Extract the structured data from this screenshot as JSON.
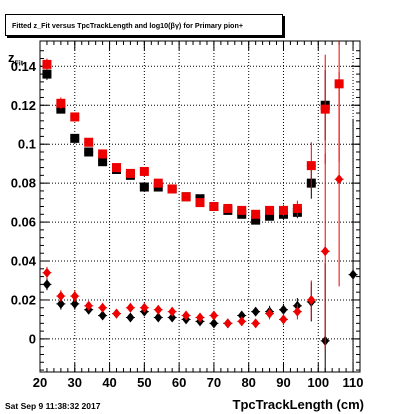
{
  "title_box": {
    "text": "Fitted  z_Fit versus TpcTrackLength and log10(βγ) for Primary pion+"
  },
  "footer": {
    "timestamp": "Sat Sep  9 11:38:32 2017"
  },
  "colors": {
    "series_black": "#000000",
    "series_red": "#ee0000"
  },
  "chart_data": {
    "type": "scatter",
    "title": "Fitted  z_Fit versus TpcTrackLength and log10(βγ) for Primary pion+",
    "xlabel": "TpcTrackLength (cm)",
    "ylabel": "z_Fit",
    "xlim": [
      20,
      112
    ],
    "ylim": [
      -0.017,
      0.153
    ],
    "x_ticks": [
      20,
      30,
      40,
      50,
      60,
      70,
      80,
      90,
      100,
      110
    ],
    "y_ticks": [
      0,
      0.02,
      0.04,
      0.06,
      0.08,
      0.1,
      0.12,
      0.14
    ],
    "y_tick_labels": [
      "0",
      "0.02",
      "0.04",
      "0.06",
      "0.08",
      "0.1",
      "0.12",
      "0.14"
    ],
    "grid": true,
    "series": [
      {
        "marker": "square",
        "color": "#000000",
        "points": [
          [
            22,
            0.136
          ],
          [
            26,
            0.118
          ],
          [
            30,
            0.103
          ],
          [
            34,
            0.096
          ],
          [
            38,
            0.091
          ],
          [
            42,
            0.087
          ],
          [
            46,
            0.084
          ],
          [
            50,
            0.078
          ],
          [
            54,
            0.078
          ],
          [
            58,
            0.077
          ],
          [
            62,
            0.073
          ],
          [
            66,
            0.072
          ],
          [
            70,
            0.068
          ],
          [
            74,
            0.066
          ],
          [
            78,
            0.064
          ],
          [
            82,
            0.061
          ],
          [
            86,
            0.063
          ],
          [
            90,
            0.064
          ],
          [
            94,
            0.065
          ],
          [
            98,
            0.08
          ],
          [
            102,
            0.12
          ]
        ],
        "errors": [
          0.003,
          0.002,
          0.002,
          0.002,
          0.002,
          0.002,
          0.002,
          0.002,
          0.002,
          0.002,
          0.002,
          0.002,
          0.002,
          0.002,
          0.002,
          0.002,
          0.002,
          0.003,
          0.003,
          0.008,
          0.018
        ]
      },
      {
        "marker": "square",
        "color": "#ee0000",
        "points": [
          [
            22,
            0.141
          ],
          [
            26,
            0.121
          ],
          [
            30,
            0.114
          ],
          [
            34,
            0.101
          ],
          [
            38,
            0.095
          ],
          [
            42,
            0.088
          ],
          [
            46,
            0.085
          ],
          [
            50,
            0.086
          ],
          [
            54,
            0.08
          ],
          [
            58,
            0.077
          ],
          [
            62,
            0.073
          ],
          [
            66,
            0.07
          ],
          [
            70,
            0.068
          ],
          [
            74,
            0.067
          ],
          [
            78,
            0.066
          ],
          [
            82,
            0.064
          ],
          [
            86,
            0.066
          ],
          [
            90,
            0.066
          ],
          [
            94,
            0.067
          ],
          [
            98,
            0.089
          ],
          [
            102,
            0.118
          ],
          [
            106,
            0.131
          ]
        ],
        "errors": [
          0.003,
          0.003,
          0.002,
          0.002,
          0.002,
          0.002,
          0.002,
          0.002,
          0.002,
          0.002,
          0.002,
          0.002,
          0.002,
          0.002,
          0.002,
          0.002,
          0.002,
          0.003,
          0.004,
          0.012,
          0.028,
          0.04
        ]
      },
      {
        "marker": "diamond",
        "color": "#000000",
        "points": [
          [
            22,
            0.028
          ],
          [
            26,
            0.018
          ],
          [
            30,
            0.018
          ],
          [
            34,
            0.015
          ],
          [
            38,
            0.012
          ],
          [
            42,
            0.013
          ],
          [
            46,
            0.011
          ],
          [
            50,
            0.014
          ],
          [
            54,
            0.011
          ],
          [
            58,
            0.011
          ],
          [
            62,
            0.01
          ],
          [
            66,
            0.009
          ],
          [
            70,
            0.008
          ],
          [
            74,
            0.008
          ],
          [
            78,
            0.012
          ],
          [
            82,
            0.014
          ],
          [
            86,
            0.014
          ],
          [
            90,
            0.015
          ],
          [
            94,
            0.017
          ],
          [
            98,
            0.019
          ],
          [
            102,
            -0.001
          ],
          [
            110,
            0.033
          ]
        ],
        "errors": [
          0.003,
          0.003,
          0.003,
          0.002,
          0.002,
          0.002,
          0.002,
          0.002,
          0.002,
          0.002,
          0.002,
          0.002,
          0.002,
          0.002,
          0.002,
          0.002,
          0.003,
          0.003,
          0.004,
          0.01,
          0.04,
          0.08
        ]
      },
      {
        "marker": "diamond",
        "color": "#ee0000",
        "points": [
          [
            22,
            0.034
          ],
          [
            26,
            0.022
          ],
          [
            30,
            0.022
          ],
          [
            34,
            0.017
          ],
          [
            38,
            0.016
          ],
          [
            42,
            0.013
          ],
          [
            46,
            0.016
          ],
          [
            50,
            0.016
          ],
          [
            54,
            0.015
          ],
          [
            58,
            0.014
          ],
          [
            62,
            0.012
          ],
          [
            66,
            0.011
          ],
          [
            70,
            0.012
          ],
          [
            74,
            0.008
          ],
          [
            78,
            0.009
          ],
          [
            82,
            0.008
          ],
          [
            86,
            0.013
          ],
          [
            90,
            0.01
          ],
          [
            94,
            0.014
          ],
          [
            98,
            0.02
          ],
          [
            102,
            0.045
          ],
          [
            106,
            0.082
          ]
        ],
        "errors": [
          0.003,
          0.003,
          0.003,
          0.002,
          0.002,
          0.002,
          0.002,
          0.002,
          0.002,
          0.002,
          0.002,
          0.002,
          0.002,
          0.002,
          0.002,
          0.002,
          0.003,
          0.003,
          0.004,
          0.01,
          0.05,
          0.055
        ]
      }
    ]
  }
}
